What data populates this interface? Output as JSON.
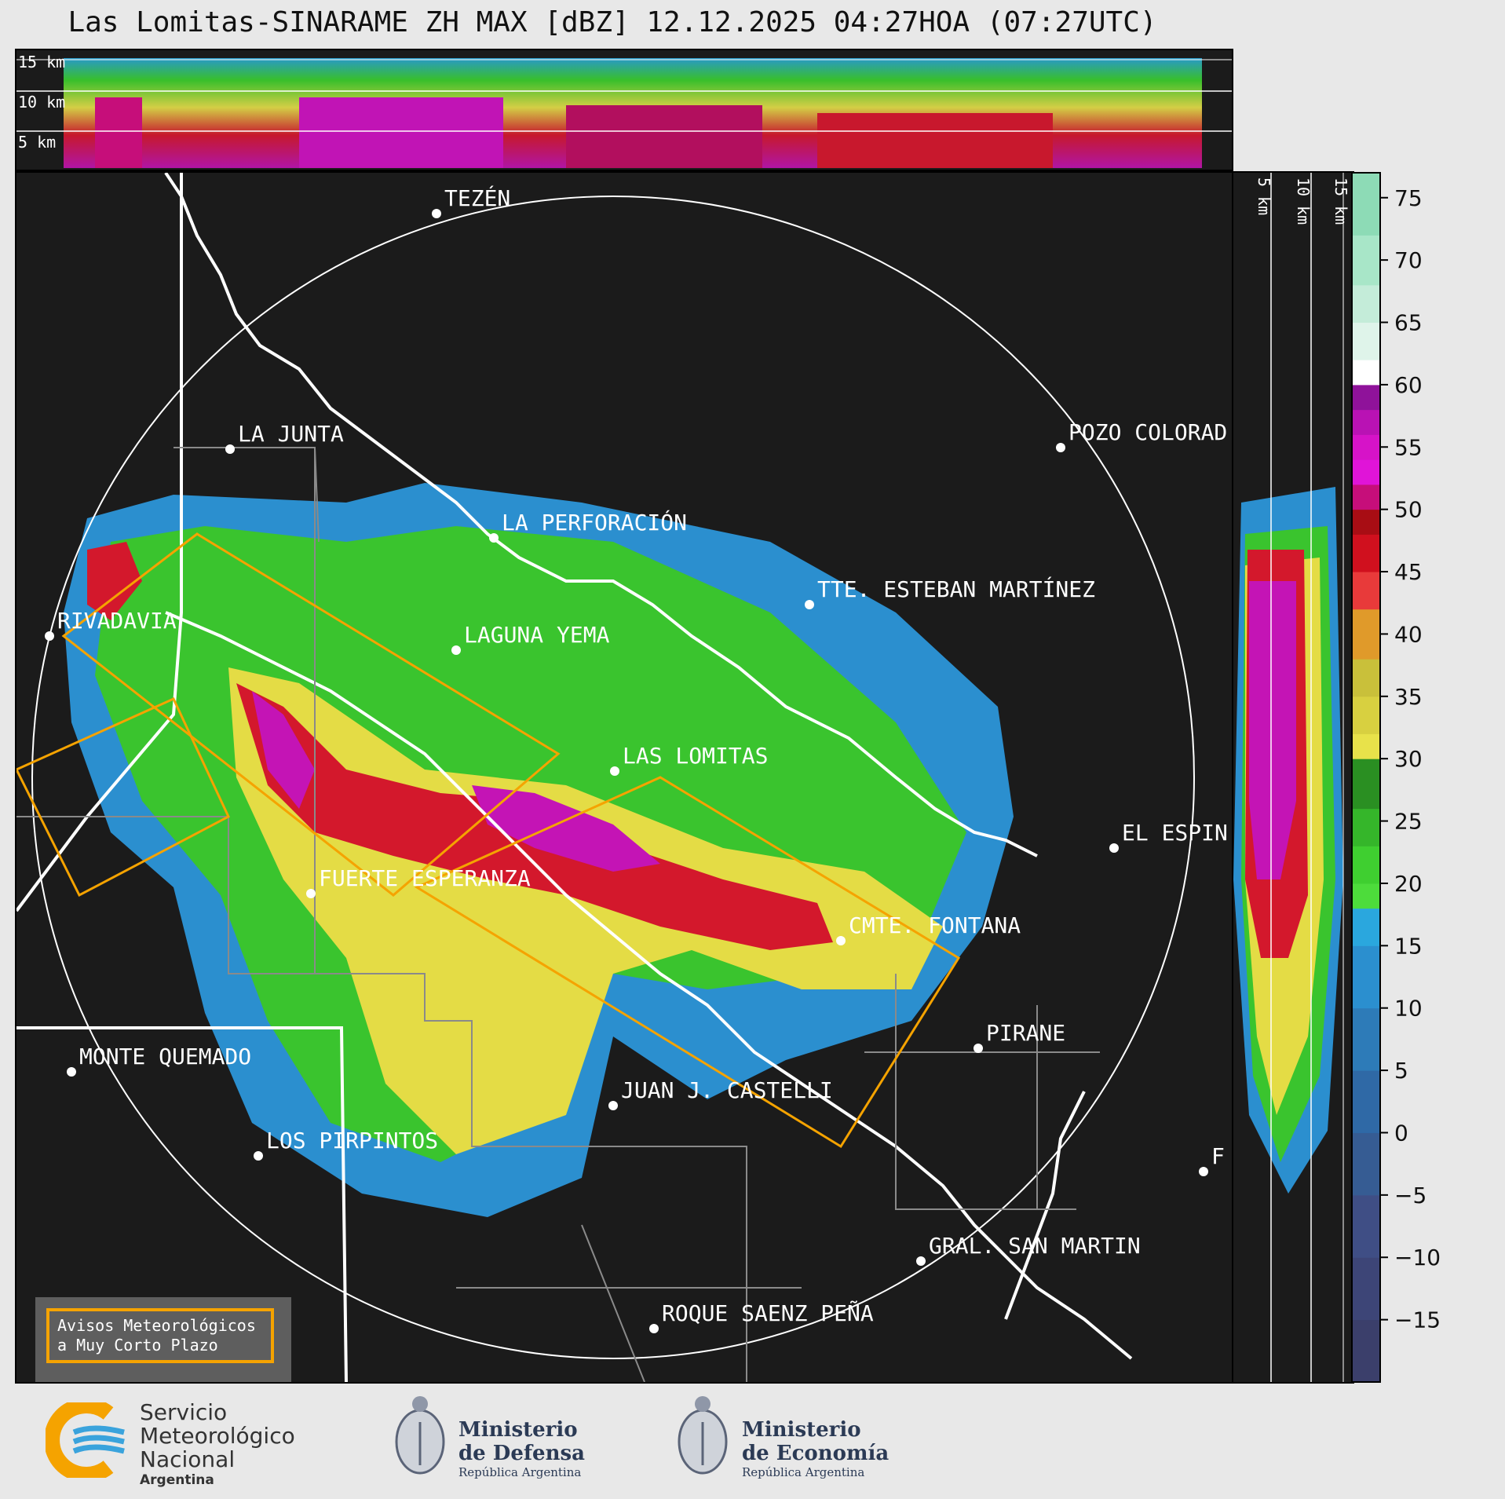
{
  "title": "Las Lomitas-SINARAME ZH MAX [dBZ] 12.12.2025 04:27HOA (07:27UTC)",
  "profile_labels": [
    "15 km",
    "10 km",
    "5 km"
  ],
  "places": [
    {
      "name": "TEZÉN"
    },
    {
      "name": "LA JUNTA"
    },
    {
      "name": "POZO COLORAD"
    },
    {
      "name": "LA PERFORACIÓN"
    },
    {
      "name": "TTE. ESTEBAN MARTÍNEZ"
    },
    {
      "name": "RIVADAVIA"
    },
    {
      "name": "LAGUNA YEMA"
    },
    {
      "name": "LAS LOMITAS"
    },
    {
      "name": "EL ESPIN"
    },
    {
      "name": "FUERTE ESPERANZA"
    },
    {
      "name": "CMTE. FONTANA"
    },
    {
      "name": "PIRANE"
    },
    {
      "name": "MONTE QUEMADO"
    },
    {
      "name": "JUAN J. CASTELLI"
    },
    {
      "name": "LOS PIRPINTOS"
    },
    {
      "name": "GRAL. SAN MARTIN"
    },
    {
      "name": "ROQUE SAENZ PEÑA"
    },
    {
      "name": "F"
    }
  ],
  "colorbar": {
    "ticks": [
      "75",
      "70",
      "65",
      "60",
      "55",
      "50",
      "45",
      "40",
      "35",
      "30",
      "25",
      "20",
      "15",
      "10",
      "5",
      "0",
      "−5",
      "−10",
      "−15"
    ],
    "range": [
      -20,
      77
    ]
  },
  "warning_box": {
    "line1": "Avisos Meteorológicos",
    "line2": "a Muy Corto Plazo"
  },
  "logos": {
    "smn": {
      "line1": "Servicio",
      "line2": "Meteorológico",
      "line3": "Nacional",
      "line4": "Argentina"
    },
    "defensa": {
      "line1": "Ministerio",
      "line2": "de Defensa",
      "line3": "República Argentina"
    },
    "economia": {
      "line1": "Ministerio",
      "line2": "de Economía",
      "line3": "República Argentina"
    }
  },
  "colors": {
    "border_white": "#ffffff",
    "warning_orange": "#f5a300",
    "panel_bg": "#1b1b1b"
  }
}
